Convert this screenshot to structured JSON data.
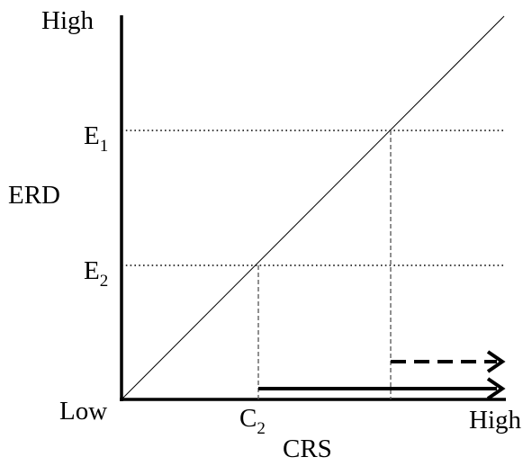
{
  "labels": {
    "y_high": "High",
    "low": "Low",
    "x_high": "High",
    "y_axis": "ERD",
    "x_axis": "CRS",
    "e1_base": "E",
    "e1_sub": "1",
    "e2_base": "E",
    "e2_sub": "2",
    "c2_base": "C",
    "c2_sub": "2"
  },
  "colors": {
    "ink": "#000000",
    "guide": "#555555"
  }
}
